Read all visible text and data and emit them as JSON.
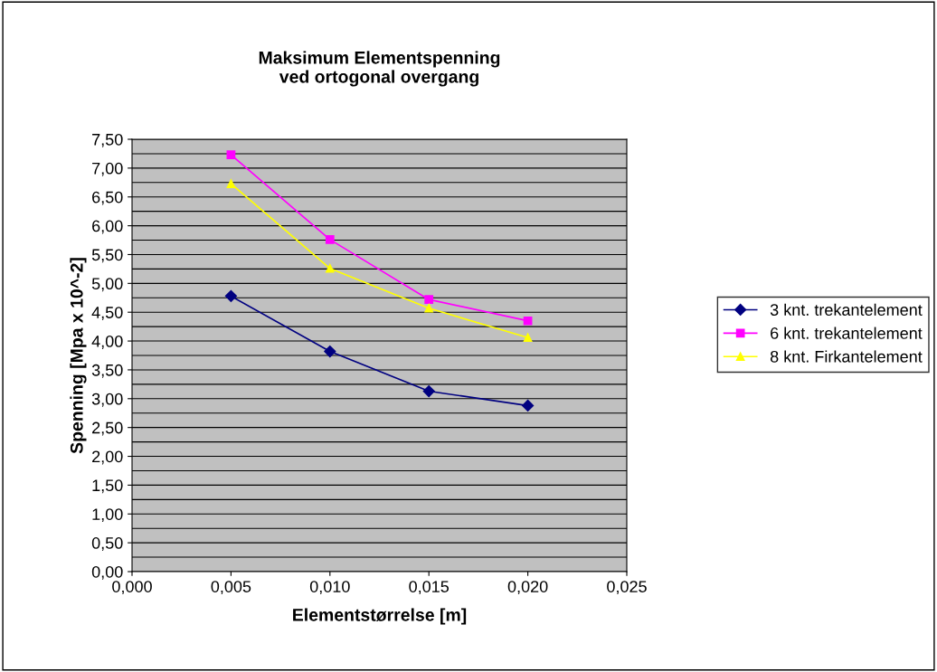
{
  "chart_data": {
    "type": "line",
    "title": "Maksimum Elementspenning\nved ortogonal overgang",
    "xlabel": "Elementstørrelse [m]",
    "ylabel": "Spenning [Mpa x 10^-2]",
    "x": [
      0.005,
      0.01,
      0.015,
      0.02
    ],
    "series": [
      {
        "name": "3 knt. trekantelement",
        "color": "#000080",
        "marker": "diamond",
        "values": [
          4.78,
          3.82,
          3.13,
          2.88
        ]
      },
      {
        "name": "6 knt. trekantelement",
        "color": "#ff00ff",
        "marker": "square",
        "values": [
          7.23,
          5.76,
          4.72,
          4.35
        ]
      },
      {
        "name": "8 knt. Firkantelement",
        "color": "#ffff00",
        "marker": "triangle",
        "values": [
          6.73,
          5.26,
          4.57,
          4.06
        ]
      }
    ],
    "xlim": [
      0,
      0.025
    ],
    "xticks": [
      {
        "value": 0,
        "label": "0,000"
      },
      {
        "value": 0.005,
        "label": "0,005"
      },
      {
        "value": 0.01,
        "label": "0,010"
      },
      {
        "value": 0.015,
        "label": "0,015"
      },
      {
        "value": 0.02,
        "label": "0,020"
      },
      {
        "value": 0.025,
        "label": "0,025"
      }
    ],
    "ylim": [
      0,
      7.5
    ],
    "yticks": [
      {
        "value": 0,
        "label": "0,00"
      },
      {
        "value": 0.25,
        "label": null
      },
      {
        "value": 0.5,
        "label": "0,50"
      },
      {
        "value": 0.75,
        "label": null
      },
      {
        "value": 1,
        "label": "1,00"
      },
      {
        "value": 1.25,
        "label": null
      },
      {
        "value": 1.5,
        "label": "1,50"
      },
      {
        "value": 1.75,
        "label": null
      },
      {
        "value": 2,
        "label": "2,00"
      },
      {
        "value": 2.25,
        "label": null
      },
      {
        "value": 2.5,
        "label": "2,50"
      },
      {
        "value": 2.75,
        "label": null
      },
      {
        "value": 3,
        "label": "3,00"
      },
      {
        "value": 3.25,
        "label": null
      },
      {
        "value": 3.5,
        "label": "3,50"
      },
      {
        "value": 3.75,
        "label": null
      },
      {
        "value": 4,
        "label": "4,00"
      },
      {
        "value": 4.25,
        "label": null
      },
      {
        "value": 4.5,
        "label": "4,50"
      },
      {
        "value": 4.75,
        "label": null
      },
      {
        "value": 5,
        "label": "5,00"
      },
      {
        "value": 5.25,
        "label": null
      },
      {
        "value": 5.5,
        "label": "5,50"
      },
      {
        "value": 5.75,
        "label": null
      },
      {
        "value": 6,
        "label": "6,00"
      },
      {
        "value": 6.25,
        "label": null
      },
      {
        "value": 6.5,
        "label": "6,50"
      },
      {
        "value": 6.75,
        "label": null
      },
      {
        "value": 7,
        "label": "7,00"
      },
      {
        "value": 7.25,
        "label": null
      },
      {
        "value": 7.5,
        "label": "7,50"
      }
    ],
    "grid": "y",
    "legend": "right",
    "line_style": "solid"
  }
}
